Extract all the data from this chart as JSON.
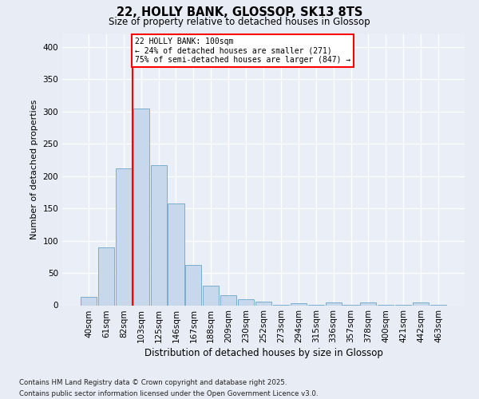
{
  "title1": "22, HOLLY BANK, GLOSSOP, SK13 8TS",
  "title2": "Size of property relative to detached houses in Glossop",
  "xlabel": "Distribution of detached houses by size in Glossop",
  "ylabel": "Number of detached properties",
  "categories": [
    "40sqm",
    "61sqm",
    "82sqm",
    "103sqm",
    "125sqm",
    "146sqm",
    "167sqm",
    "188sqm",
    "209sqm",
    "230sqm",
    "252sqm",
    "273sqm",
    "294sqm",
    "315sqm",
    "336sqm",
    "357sqm",
    "378sqm",
    "400sqm",
    "421sqm",
    "442sqm",
    "463sqm"
  ],
  "values": [
    13,
    90,
    212,
    305,
    217,
    158,
    63,
    30,
    15,
    9,
    6,
    1,
    3,
    1,
    4,
    1,
    4,
    1,
    1,
    4,
    1
  ],
  "bar_color": "#c8d8ec",
  "bar_edge_color": "#7aadcc",
  "red_line_index": 2.5,
  "annotation_line1": "22 HOLLY BANK: 100sqm",
  "annotation_line2": "← 24% of detached houses are smaller (271)",
  "annotation_line3": "75% of semi-detached houses are larger (847) →",
  "ylim_max": 420,
  "yticks": [
    0,
    50,
    100,
    150,
    200,
    250,
    300,
    350,
    400
  ],
  "footer": "Contains HM Land Registry data © Crown copyright and database right 2025.\nContains public sector information licensed under the Open Government Licence v3.0.",
  "fig_bg": "#e8ecf4",
  "ax_bg": "#eaeef6"
}
